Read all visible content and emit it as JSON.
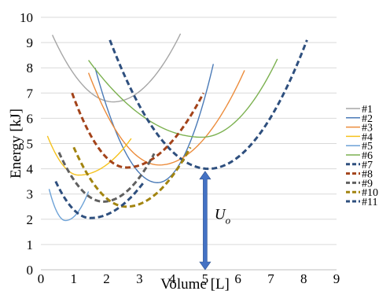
{
  "chart_data": {
    "type": "line",
    "xlabel": "Volume [L]",
    "ylabel": "Energy [kJ]",
    "xlim": [
      0,
      9
    ],
    "ylim": [
      0,
      10
    ],
    "xticks": [
      "0",
      "1",
      "2",
      "3",
      "4",
      "5",
      "6",
      "7",
      "8",
      "9"
    ],
    "yticks": [
      "0",
      "1",
      "2",
      "3",
      "4",
      "5",
      "6",
      "7",
      "8",
      "9",
      "10"
    ],
    "grid": "horizontal",
    "legend_position": "right",
    "series": [
      {
        "name": "#1",
        "color": "#a6a6a6",
        "dashed": false,
        "x_range": [
          0.35,
          4.25
        ],
        "x_min": 2.2,
        "y_min": 6.65,
        "y_left": 9.3,
        "y_right": 9.35
      },
      {
        "name": "#2",
        "color": "#4a7ab7",
        "dashed": false,
        "x_range": [
          1.65,
          5.25
        ],
        "x_min": 3.55,
        "y_min": 3.45,
        "y_left": 8.0,
        "y_right": 8.15
      },
      {
        "name": "#3",
        "color": "#ec8c3c",
        "dashed": false,
        "x_range": [
          1.45,
          6.2
        ],
        "x_min": 3.6,
        "y_min": 4.15,
        "y_left": 7.8,
        "y_right": 7.9
      },
      {
        "name": "#4",
        "color": "#f5c21e",
        "dashed": false,
        "x_range": [
          0.2,
          2.75
        ],
        "x_min": 1.15,
        "y_min": 3.75,
        "y_left": 5.3,
        "y_right": 5.2
      },
      {
        "name": "#5",
        "color": "#6da2d7",
        "dashed": false,
        "x_range": [
          0.25,
          1.45
        ],
        "x_min": 0.75,
        "y_min": 1.95,
        "y_left": 3.2,
        "y_right": 3.1
      },
      {
        "name": "#6",
        "color": "#7cb150",
        "dashed": false,
        "x_range": [
          1.45,
          7.2
        ],
        "x_min": 4.9,
        "y_min": 5.25,
        "y_left": 8.3,
        "y_right": 8.35
      },
      {
        "name": "#7",
        "color": "#2e4f7e",
        "dashed": true,
        "x_range": [
          2.1,
          8.1
        ],
        "x_min": 5.1,
        "y_min": 4.0,
        "y_left": 9.1,
        "y_right": 9.1
      },
      {
        "name": "#8",
        "color": "#a3431a",
        "dashed": true,
        "x_range": [
          0.95,
          4.95
        ],
        "x_min": 2.6,
        "y_min": 4.05,
        "y_left": 7.0,
        "y_right": 7.0
      },
      {
        "name": "#9",
        "color": "#606060",
        "dashed": true,
        "x_range": [
          0.55,
          3.45
        ],
        "x_min": 1.9,
        "y_min": 2.7,
        "y_left": 4.65,
        "y_right": 4.6
      },
      {
        "name": "#10",
        "color": "#a28410",
        "dashed": true,
        "x_range": [
          1.0,
          4.55
        ],
        "x_min": 2.6,
        "y_min": 2.5,
        "y_left": 4.85,
        "y_right": 4.85
      },
      {
        "name": "#11",
        "color": "#2e4f7e",
        "dashed": true,
        "x_range": [
          0.45,
          3.15
        ],
        "x_min": 1.5,
        "y_min": 2.05,
        "y_left": 3.5,
        "y_right": 3.5
      }
    ],
    "annotations": [
      {
        "label_main": "U",
        "label_sub": "o",
        "arrow_x": 5.0,
        "arrow_from": 0,
        "arrow_to": 3.9,
        "color": "#4472c4"
      }
    ]
  }
}
